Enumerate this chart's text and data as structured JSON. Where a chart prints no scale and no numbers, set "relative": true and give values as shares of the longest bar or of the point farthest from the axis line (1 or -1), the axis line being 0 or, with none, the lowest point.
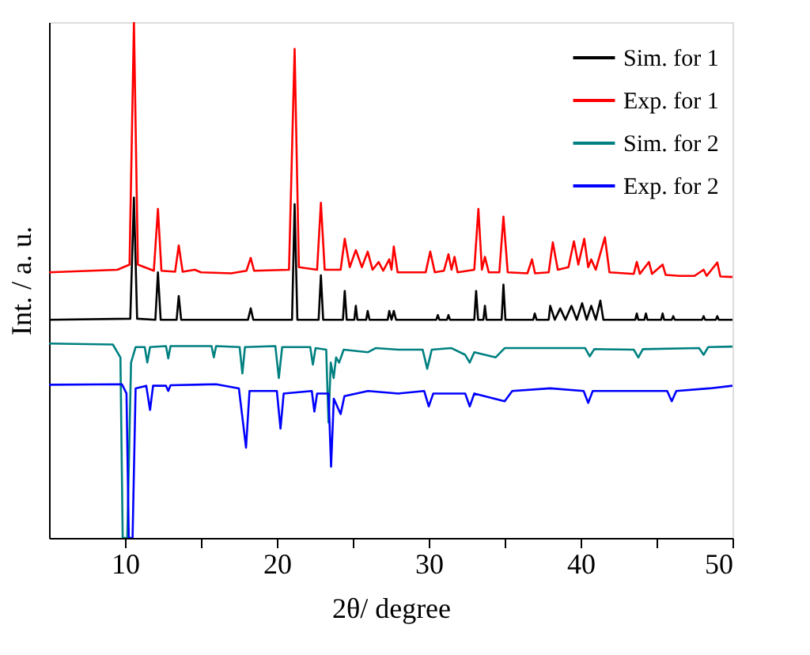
{
  "chart_data": {
    "type": "line",
    "relative": true,
    "xlabel": "2θ/ degree",
    "ylabel": "Int. / a. u.",
    "xlim": [
      5,
      50
    ],
    "xticks": [
      10,
      {
        "value": 15,
        "label": null
      },
      20,
      {
        "value": 25,
        "label": null
      },
      30,
      {
        "value": 35,
        "label": null
      },
      40,
      {
        "value": 45,
        "label": null
      },
      50
    ],
    "tick_labels": "x",
    "grid": false,
    "legend": "top right",
    "marker": "none",
    "line_style": "solid",
    "series": [
      {
        "name": "Sim. for 1",
        "color": "#000000",
        "x": [
          5,
          10.35,
          10.59,
          10.8,
          12.0,
          12.17,
          12.35,
          13.4,
          13.54,
          13.7,
          18.1,
          18.28,
          18.45,
          21.0,
          21.17,
          21.35,
          22.75,
          22.9,
          23.05,
          24.35,
          24.47,
          24.6,
          25.1,
          25.2,
          25.3,
          25.88,
          25.98,
          26.1,
          27.3,
          27.4,
          27.55,
          27.7,
          27.85,
          30.5,
          30.6,
          30.7,
          31.2,
          31.3,
          31.4,
          33.0,
          33.12,
          33.25,
          33.6,
          33.7,
          33.8,
          34.8,
          34.92,
          35.05,
          36.88,
          36.98,
          37.1,
          37.9,
          38.0,
          38.3,
          38.66,
          39.0,
          39.4,
          39.75,
          40.1,
          40.4,
          40.7,
          41.0,
          41.3,
          41.5,
          43.6,
          43.7,
          43.8,
          44.2,
          44.3,
          44.4,
          45.3,
          45.4,
          45.5,
          46.0,
          46.1,
          46.2,
          48.0,
          48.1,
          48.2,
          48.9,
          49.0,
          49.1,
          50
        ],
        "values": [
          0.423,
          0.425,
          0.66,
          0.425,
          0.423,
          0.515,
          0.423,
          0.423,
          0.469,
          0.423,
          0.423,
          0.445,
          0.423,
          0.423,
          0.647,
          0.423,
          0.423,
          0.509,
          0.423,
          0.423,
          0.479,
          0.423,
          0.423,
          0.45,
          0.423,
          0.423,
          0.44,
          0.423,
          0.423,
          0.44,
          0.423,
          0.44,
          0.423,
          0.423,
          0.432,
          0.423,
          0.423,
          0.432,
          0.423,
          0.423,
          0.479,
          0.423,
          0.423,
          0.45,
          0.423,
          0.423,
          0.491,
          0.423,
          0.423,
          0.435,
          0.423,
          0.423,
          0.45,
          0.423,
          0.445,
          0.423,
          0.45,
          0.423,
          0.455,
          0.423,
          0.45,
          0.423,
          0.46,
          0.423,
          0.423,
          0.435,
          0.423,
          0.423,
          0.435,
          0.423,
          0.423,
          0.435,
          0.423,
          0.423,
          0.43,
          0.423,
          0.423,
          0.43,
          0.423,
          0.423,
          0.43,
          0.423,
          0.423
        ]
      },
      {
        "name": "Exp. for 1",
        "color": "#ff0000",
        "x": [
          5,
          9.5,
          10.3,
          10.59,
          10.85,
          11.9,
          12.17,
          12.4,
          13.3,
          13.54,
          13.8,
          14.6,
          15,
          17.0,
          18.0,
          18.28,
          18.5,
          20.8,
          21.17,
          21.45,
          22.65,
          22.9,
          23.15,
          24.2,
          24.47,
          24.8,
          25.2,
          25.6,
          25.98,
          26.3,
          26.7,
          27.0,
          27.4,
          27.55,
          27.7,
          27.95,
          29.8,
          30.1,
          30.4,
          31.0,
          31.3,
          31.5,
          31.7,
          31.9,
          33.0,
          33.27,
          33.5,
          33.7,
          33.95,
          34.65,
          34.92,
          35.2,
          36.5,
          36.8,
          37.0,
          37.9,
          38.17,
          38.5,
          39.2,
          39.56,
          39.85,
          40.24,
          40.5,
          40.7,
          41.0,
          41.6,
          41.9,
          43.5,
          43.7,
          43.9,
          44.5,
          44.7,
          45.4,
          45.6,
          46.5,
          47.5,
          48.1,
          48.3,
          49.0,
          49.2,
          50
        ],
        "values": [
          0.515,
          0.52,
          0.53,
          1.0,
          0.53,
          0.518,
          0.638,
          0.518,
          0.516,
          0.567,
          0.516,
          0.52,
          0.515,
          0.513,
          0.518,
          0.543,
          0.518,
          0.52,
          0.948,
          0.525,
          0.52,
          0.65,
          0.52,
          0.52,
          0.58,
          0.525,
          0.558,
          0.525,
          0.555,
          0.52,
          0.535,
          0.518,
          0.54,
          0.52,
          0.565,
          0.515,
          0.515,
          0.555,
          0.515,
          0.518,
          0.55,
          0.52,
          0.545,
          0.515,
          0.52,
          0.638,
          0.52,
          0.545,
          0.515,
          0.515,
          0.623,
          0.515,
          0.513,
          0.54,
          0.513,
          0.515,
          0.573,
          0.52,
          0.525,
          0.575,
          0.53,
          0.58,
          0.525,
          0.54,
          0.52,
          0.583,
          0.515,
          0.512,
          0.535,
          0.512,
          0.535,
          0.512,
          0.53,
          0.51,
          0.508,
          0.508,
          0.52,
          0.508,
          0.534,
          0.507,
          0.506
        ]
      },
      {
        "name": "Sim. for 2",
        "color": "#008080",
        "x": [
          5,
          9.2,
          9.7,
          9.85,
          10.15,
          10.4,
          10.7,
          11.3,
          11.47,
          11.65,
          12.7,
          12.85,
          13.0,
          15.7,
          15.85,
          16.0,
          17.55,
          17.73,
          17.9,
          19.9,
          20.13,
          20.35,
          22.2,
          22.37,
          22.55,
          23.25,
          23.4,
          23.55,
          23.74,
          23.9,
          24.1,
          24.4,
          25.98,
          26.5,
          28,
          29.6,
          29.9,
          30.2,
          31.5,
          32.4,
          32.7,
          33.0,
          34.4,
          35,
          37,
          40.3,
          40.6,
          40.9,
          43.5,
          43.8,
          44.1,
          47.8,
          48.1,
          48.4,
          50
        ],
        "values": [
          0.377,
          0.375,
          0.35,
          0,
          0,
          0.34,
          0.37,
          0.37,
          0.34,
          0.37,
          0.372,
          0.348,
          0.372,
          0.372,
          0.35,
          0.372,
          0.37,
          0.319,
          0.37,
          0.372,
          0.31,
          0.37,
          0.37,
          0.336,
          0.368,
          0.365,
          0.224,
          0.34,
          0.31,
          0.35,
          0.34,
          0.365,
          0.36,
          0.368,
          0.365,
          0.365,
          0.328,
          0.365,
          0.368,
          0.355,
          0.34,
          0.36,
          0.35,
          0.368,
          0.368,
          0.368,
          0.352,
          0.366,
          0.365,
          0.35,
          0.366,
          0.368,
          0.355,
          0.37,
          0.371
        ]
      },
      {
        "name": "Exp. for 2",
        "color": "#0000ff",
        "x": [
          5,
          9.8,
          10.1,
          10.25,
          10.5,
          10.7,
          11.4,
          11.65,
          11.85,
          12.7,
          12.85,
          13.0,
          16,
          17.5,
          17.97,
          18.2,
          20.0,
          20.24,
          20.45,
          22.3,
          22.47,
          22.65,
          23.4,
          23.57,
          23.75,
          24.2,
          24.45,
          26,
          28,
          29.7,
          30.0,
          30.3,
          32.4,
          32.7,
          33.0,
          35.0,
          35.5,
          38,
          40.2,
          40.5,
          40.8,
          43,
          45.7,
          46.0,
          46.3,
          48.5,
          50
        ],
        "values": [
          0.297,
          0.298,
          0.28,
          0,
          0,
          0.29,
          0.295,
          0.248,
          0.295,
          0.295,
          0.285,
          0.296,
          0.298,
          0.29,
          0.175,
          0.285,
          0.285,
          0.212,
          0.28,
          0.285,
          0.245,
          0.28,
          0.28,
          0.138,
          0.27,
          0.24,
          0.275,
          0.285,
          0.28,
          0.285,
          0.255,
          0.28,
          0.28,
          0.255,
          0.28,
          0.265,
          0.285,
          0.29,
          0.285,
          0.262,
          0.285,
          0.285,
          0.285,
          0.265,
          0.285,
          0.29,
          0.295
        ]
      }
    ]
  }
}
